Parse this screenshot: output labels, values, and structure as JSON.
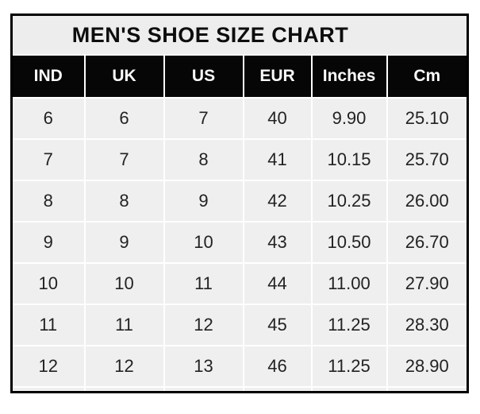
{
  "page": {
    "background": "#ffffff"
  },
  "chart": {
    "title": "MEN'S SHOE SIZE CHART",
    "columns": [
      "IND",
      "UK",
      "US",
      "EUR",
      "Inches",
      "Cm"
    ],
    "rows": [
      [
        "6",
        "6",
        "7",
        "40",
        "9.90",
        "25.10"
      ],
      [
        "7",
        "7",
        "8",
        "41",
        "10.15",
        "25.70"
      ],
      [
        "8",
        "8",
        "9",
        "42",
        "10.25",
        "26.00"
      ],
      [
        "9",
        "9",
        "10",
        "43",
        "10.50",
        "26.70"
      ],
      [
        "10",
        "10",
        "11",
        "44",
        "11.00",
        "27.90"
      ],
      [
        "11",
        "11",
        "12",
        "45",
        "11.25",
        "28.30"
      ],
      [
        "12",
        "12",
        "13",
        "46",
        "11.25",
        "28.90"
      ]
    ]
  },
  "chart_data": {
    "type": "table",
    "title": "MEN'S SHOE SIZE CHART",
    "columns": [
      "IND",
      "UK",
      "US",
      "EUR",
      "Inches",
      "Cm"
    ],
    "rows": [
      [
        6,
        6,
        7,
        40,
        9.9,
        25.1
      ],
      [
        7,
        7,
        8,
        41,
        10.15,
        25.7
      ],
      [
        8,
        8,
        9,
        42,
        10.25,
        26.0
      ],
      [
        9,
        9,
        10,
        43,
        10.5,
        26.7
      ],
      [
        10,
        10,
        11,
        44,
        11.0,
        27.9
      ],
      [
        11,
        11,
        12,
        45,
        11.25,
        28.3
      ],
      [
        12,
        12,
        13,
        46,
        11.25,
        28.9
      ]
    ],
    "layout": {
      "grid": true,
      "header_style": "black-on-white",
      "legend": "none"
    }
  },
  "colors": {
    "outer_border": "#000000",
    "header_bg": "#060606",
    "header_text": "#fafafa",
    "cell_bg": "#efefef",
    "title_bg": "#ededed",
    "cell_text": "#222222",
    "gridline": "#ffffff"
  }
}
